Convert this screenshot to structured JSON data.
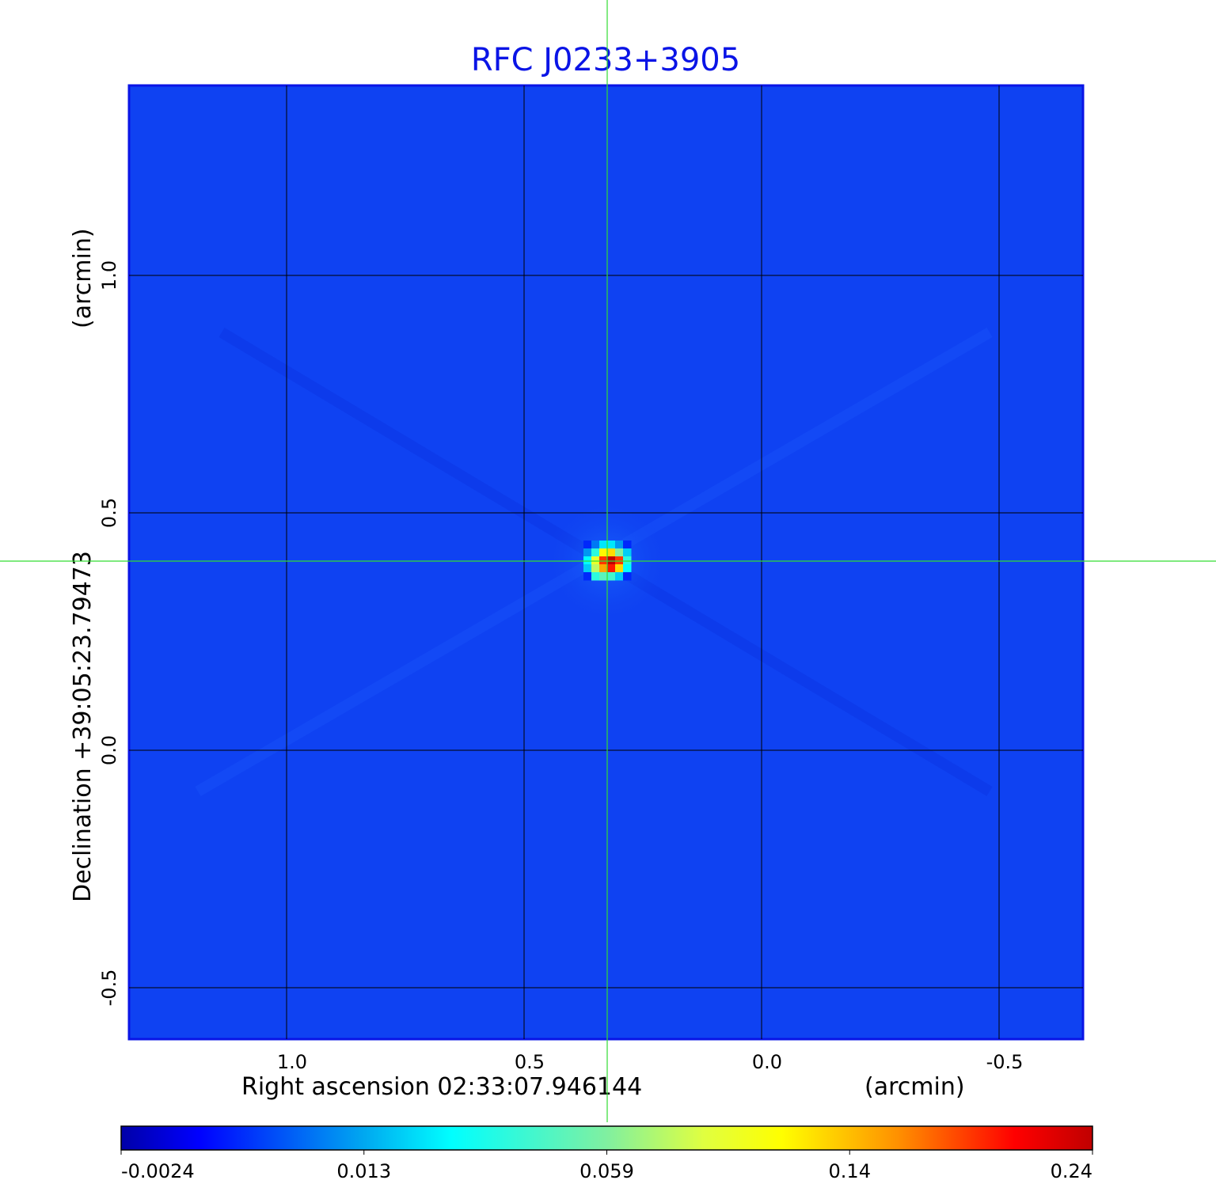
{
  "chart_data": {
    "type": "heatmap",
    "title": "RFC J0233+3905",
    "xlabel": "Right ascension  02:33:07.946144",
    "xunit": "(arcmin)",
    "ylabel": "Declination  +39:05:23.79473",
    "yunit": "(arcmin)",
    "x_ticks": [
      1.0,
      0.5,
      0.0,
      -0.5
    ],
    "x_tick_labels": [
      "1.0",
      "0.5",
      "0.0",
      "-0.5"
    ],
    "y_ticks": [
      1.0,
      0.5,
      0.0,
      -0.5
    ],
    "y_tick_labels": [
      "1.0",
      "0.5",
      "0.0",
      "-0.5"
    ],
    "xlim": [
      1.33,
      -0.68
    ],
    "ylim": [
      -0.61,
      1.39
    ],
    "grid": true,
    "crosshair": {
      "x": 0.325,
      "y": 0.398,
      "color": "#33dd33"
    },
    "colormap": "jet",
    "colorbar": {
      "ticks": [
        -0.0024,
        0.013,
        0.059,
        0.14,
        0.24
      ],
      "tick_labels": [
        "-0.0024",
        "0.013",
        "0.059",
        "0.14",
        "0.24"
      ],
      "placement": "bottom"
    },
    "background_value": 0.0,
    "source_peak": 0.24,
    "source_pixels": [
      [
        0.005,
        0.01,
        0.025,
        0.025,
        0.012,
        0.005
      ],
      [
        0.012,
        0.04,
        0.12,
        0.13,
        0.06,
        0.02
      ],
      [
        0.03,
        0.1,
        0.19,
        0.24,
        0.19,
        0.04
      ],
      [
        0.02,
        0.08,
        0.15,
        0.2,
        0.13,
        0.03
      ],
      [
        0.005,
        0.04,
        0.05,
        0.045,
        0.02,
        0.005
      ]
    ]
  }
}
